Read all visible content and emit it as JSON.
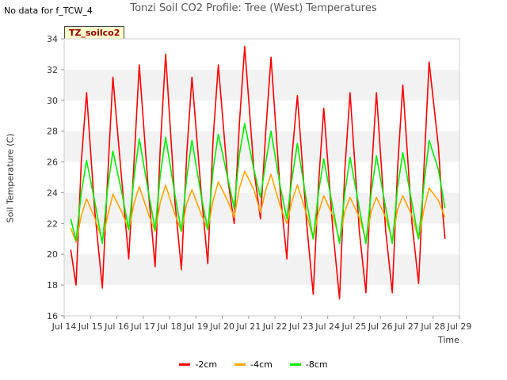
{
  "header": {
    "corner_note": "No data for f_TCW_4",
    "title": "Tonzi Soil CO2 Profile: Tree (West) Temperatures",
    "tag": "TZ_soilco2"
  },
  "chart_data": {
    "type": "line",
    "title": "Tonzi Soil CO2 Profile: Tree (West) Temperatures",
    "xlabel": "Time",
    "ylabel": "Soil Temperature (C)",
    "ylim": [
      16,
      34
    ],
    "yticks": [
      16,
      18,
      20,
      22,
      24,
      26,
      28,
      30,
      32,
      34
    ],
    "xlim": [
      14,
      29
    ],
    "xticks": [
      14,
      15,
      16,
      17,
      18,
      19,
      20,
      21,
      22,
      23,
      24,
      25,
      26,
      27,
      28,
      29
    ],
    "xtick_labels": [
      "Jul 14",
      "Jul 15",
      "Jul 16",
      "Jul 17",
      "Jul 18",
      "Jul 19",
      "Jul 20",
      "Jul 21",
      "Jul 22",
      "Jul 23",
      "Jul 24",
      "Jul 25",
      "Jul 26",
      "Jul 27",
      "Jul 28",
      "Jul 29"
    ],
    "grid": "horizontal bands",
    "legend_position": "bottom-center",
    "series": [
      {
        "name": "-2cm",
        "color": "#ff0000",
        "x": [
          14.25,
          14.45,
          14.65,
          14.85,
          15.15,
          15.45,
          15.65,
          15.85,
          16.2,
          16.45,
          16.65,
          16.85,
          17.2,
          17.45,
          17.65,
          17.85,
          18.2,
          18.45,
          18.65,
          18.85,
          19.2,
          19.45,
          19.65,
          19.85,
          20.2,
          20.45,
          20.65,
          20.85,
          21.2,
          21.45,
          21.65,
          21.85,
          22.2,
          22.45,
          22.65,
          22.85,
          23.2,
          23.45,
          23.65,
          23.85,
          24.2,
          24.45,
          24.65,
          24.85,
          25.2,
          25.45,
          25.65,
          25.85,
          26.2,
          26.45,
          26.65,
          26.85,
          27.2,
          27.45,
          27.65,
          27.85,
          28.2,
          28.35,
          28.45
        ],
        "y": [
          20.3,
          18.0,
          26.0,
          30.5,
          23.0,
          17.8,
          25.0,
          31.5,
          24.5,
          19.7,
          26.0,
          32.3,
          24.0,
          19.2,
          27.0,
          33.0,
          23.5,
          19.0,
          26.5,
          31.5,
          24.0,
          19.4,
          27.5,
          32.3,
          25.0,
          22.0,
          28.5,
          33.5,
          25.5,
          22.3,
          28.0,
          32.8,
          24.0,
          19.7,
          26.5,
          30.3,
          22.0,
          17.4,
          24.5,
          29.5,
          21.5,
          17.1,
          25.5,
          30.5,
          21.5,
          17.5,
          25.0,
          30.5,
          21.5,
          17.5,
          25.5,
          31.0,
          22.0,
          18.1,
          25.5,
          32.5,
          27.0,
          23.0,
          21.0
        ]
      },
      {
        "name": "-4cm",
        "color": "#ffa500",
        "x": [
          14.25,
          14.45,
          14.65,
          14.85,
          15.15,
          15.45,
          15.65,
          15.85,
          16.2,
          16.45,
          16.65,
          16.85,
          17.2,
          17.45,
          17.65,
          17.85,
          18.2,
          18.45,
          18.65,
          18.85,
          19.2,
          19.45,
          19.65,
          19.85,
          20.2,
          20.45,
          20.65,
          20.85,
          21.2,
          21.45,
          21.65,
          21.85,
          22.2,
          22.45,
          22.65,
          22.85,
          23.2,
          23.45,
          23.65,
          23.85,
          24.2,
          24.45,
          24.65,
          24.85,
          25.2,
          25.45,
          25.65,
          25.85,
          26.2,
          26.45,
          26.65,
          26.85,
          27.2,
          27.45,
          27.65,
          27.85,
          28.2,
          28.45
        ],
        "y": [
          21.7,
          20.8,
          22.5,
          23.6,
          22.4,
          20.9,
          22.5,
          23.9,
          22.7,
          21.6,
          23.3,
          24.4,
          22.6,
          21.5,
          23.4,
          24.5,
          22.6,
          21.5,
          23.3,
          24.2,
          22.6,
          21.6,
          23.5,
          24.7,
          23.5,
          22.4,
          24.3,
          25.4,
          24.2,
          22.7,
          24.2,
          25.2,
          23.1,
          22.0,
          23.5,
          24.5,
          22.6,
          21.0,
          22.7,
          23.8,
          22.5,
          20.9,
          22.8,
          23.7,
          22.4,
          20.9,
          22.8,
          23.7,
          22.4,
          20.9,
          22.9,
          23.8,
          22.5,
          21.0,
          22.9,
          24.3,
          23.5,
          22.4
        ]
      },
      {
        "name": "-8cm",
        "color": "#00ee00",
        "x": [
          14.25,
          14.45,
          14.65,
          14.85,
          15.15,
          15.45,
          15.65,
          15.85,
          16.2,
          16.45,
          16.65,
          16.85,
          17.2,
          17.45,
          17.65,
          17.85,
          18.2,
          18.45,
          18.65,
          18.85,
          19.2,
          19.45,
          19.65,
          19.85,
          20.2,
          20.45,
          20.65,
          20.85,
          21.2,
          21.45,
          21.65,
          21.85,
          22.2,
          22.45,
          22.65,
          22.85,
          23.2,
          23.45,
          23.65,
          23.85,
          24.2,
          24.45,
          24.65,
          24.85,
          25.2,
          25.45,
          25.65,
          25.85,
          26.2,
          26.45,
          26.65,
          26.85,
          27.2,
          27.45,
          27.65,
          27.85,
          28.2,
          28.45
        ],
        "y": [
          22.3,
          20.9,
          24.0,
          26.1,
          23.5,
          20.7,
          24.3,
          26.7,
          23.9,
          21.6,
          25.0,
          27.5,
          24.0,
          21.6,
          25.2,
          27.6,
          23.9,
          21.5,
          25.0,
          27.4,
          23.8,
          21.6,
          25.5,
          27.8,
          25.0,
          23.0,
          26.5,
          28.5,
          25.5,
          23.7,
          26.0,
          28.0,
          24.4,
          22.3,
          25.0,
          27.2,
          23.4,
          21.0,
          24.0,
          26.2,
          23.0,
          20.7,
          24.0,
          26.3,
          23.0,
          20.7,
          24.0,
          26.4,
          23.0,
          20.7,
          24.3,
          26.6,
          23.3,
          21.0,
          24.5,
          27.4,
          25.5,
          23.0
        ]
      }
    ]
  }
}
